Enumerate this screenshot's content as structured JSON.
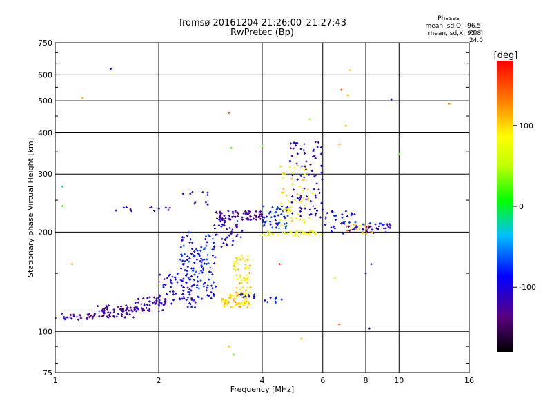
{
  "header": {
    "title": "Tromsø 20161204 21:26:00–21:27:43",
    "subtitle": "RwPretec (Bp)"
  },
  "phase_info": {
    "heading": "Phases",
    "line_o": "mean, sd,O: -96.5, 20.3",
    "line_x": "mean, sd,X: 92.8, 24.0"
  },
  "colorbar": {
    "label": "[deg]",
    "min": -180,
    "max": 180,
    "tick_labels": [
      "100",
      "0",
      "-100"
    ],
    "tick_values": [
      100,
      0,
      -100
    ]
  },
  "chart_data": {
    "type": "scatter",
    "xlabel": "Frequency [MHz]",
    "ylabel": "Stationary phase Virtual Height [km]",
    "x_scale": "log2",
    "y_scale": "log",
    "xlim": [
      1,
      16
    ],
    "ylim": [
      75,
      750
    ],
    "x_ticks": [
      1,
      2,
      4,
      6,
      8,
      10,
      16
    ],
    "y_ticks": [
      75,
      100,
      200,
      300,
      400,
      500,
      600,
      750
    ],
    "grid": true,
    "clusters": [
      {
        "x_range": [
          1.0,
          1.3
        ],
        "y_range": [
          108,
          114
        ],
        "phase": -120,
        "count": 30
      },
      {
        "x_range": [
          1.3,
          1.7
        ],
        "y_range": [
          110,
          120
        ],
        "phase": -130,
        "count": 60
      },
      {
        "x_range": [
          1.7,
          2.1
        ],
        "y_range": [
          115,
          128
        ],
        "phase": -120,
        "count": 55
      },
      {
        "x_range": [
          2.0,
          2.6
        ],
        "y_range": [
          118,
          150
        ],
        "phase": -100,
        "count": 60
      },
      {
        "x_range": [
          2.3,
          2.95
        ],
        "y_range": [
          125,
          200
        ],
        "phase": -85,
        "count": 130
      },
      {
        "x_range": [
          3.05,
          3.7
        ],
        "y_range": [
          118,
          130
        ],
        "phase": 100,
        "count": 70
      },
      {
        "x_range": [
          3.3,
          3.7
        ],
        "y_range": [
          130,
          170
        ],
        "phase": 95,
        "count": 60
      },
      {
        "x_range": [
          2.9,
          3.5
        ],
        "y_range": [
          180,
          220
        ],
        "phase": -105,
        "count": 40
      },
      {
        "x_range": [
          2.9,
          4.0
        ],
        "y_range": [
          218,
          232
        ],
        "phase": -125,
        "count": 70
      },
      {
        "x_range": [
          4.0,
          4.8
        ],
        "y_range": [
          205,
          240
        ],
        "phase": -80,
        "count": 50
      },
      {
        "x_range": [
          4.0,
          6.0
        ],
        "y_range": [
          195,
          202
        ],
        "phase": 80,
        "count": 40
      },
      {
        "x_range": [
          4.5,
          5.6
        ],
        "y_range": [
          210,
          320
        ],
        "phase": 90,
        "count": 60
      },
      {
        "x_range": [
          4.8,
          6.0
        ],
        "y_range": [
          220,
          380
        ],
        "phase": -110,
        "count": 80
      },
      {
        "x_range": [
          6.0,
          7.5
        ],
        "y_range": [
          198,
          232
        ],
        "phase": -90,
        "count": 35
      },
      {
        "x_range": [
          7.3,
          9.5
        ],
        "y_range": [
          198,
          213
        ],
        "phase": -100,
        "count": 35
      },
      {
        "x_range": [
          7.0,
          8.5
        ],
        "y_range": [
          198,
          212
        ],
        "phase": 110,
        "count": 20
      },
      {
        "x_range": [
          1.5,
          2.2
        ],
        "y_range": [
          231,
          238
        ],
        "phase": -115,
        "count": 12
      },
      {
        "x_range": [
          2.3,
          2.8
        ],
        "y_range": [
          240,
          265
        ],
        "phase": -110,
        "count": 10
      },
      {
        "x_range": [
          3.4,
          3.8
        ],
        "y_range": [
          125,
          130
        ],
        "phase": -100,
        "count": 10
      },
      {
        "x_range": [
          4.0,
          4.6
        ],
        "y_range": [
          122,
          127
        ],
        "phase": -80,
        "count": 10
      }
    ],
    "points": [
      {
        "x": 1.45,
        "y": 625,
        "phase": -110
      },
      {
        "x": 1.05,
        "y": 275,
        "phase": -10
      },
      {
        "x": 1.05,
        "y": 240,
        "phase": 20
      },
      {
        "x": 1.12,
        "y": 160,
        "phase": 120
      },
      {
        "x": 1.2,
        "y": 510,
        "phase": 110
      },
      {
        "x": 3.2,
        "y": 460,
        "phase": 150
      },
      {
        "x": 3.25,
        "y": 360,
        "phase": 20
      },
      {
        "x": 3.2,
        "y": 90,
        "phase": 110
      },
      {
        "x": 3.3,
        "y": 85,
        "phase": 30
      },
      {
        "x": 4.5,
        "y": 160,
        "phase": 150
      },
      {
        "x": 6.8,
        "y": 540,
        "phase": 160
      },
      {
        "x": 7.1,
        "y": 520,
        "phase": 120
      },
      {
        "x": 7.2,
        "y": 620,
        "phase": 110
      },
      {
        "x": 7.0,
        "y": 420,
        "phase": 130
      },
      {
        "x": 9.5,
        "y": 505,
        "phase": -110
      },
      {
        "x": 10.0,
        "y": 345,
        "phase": 30
      },
      {
        "x": 14.0,
        "y": 490,
        "phase": 130
      },
      {
        "x": 8.3,
        "y": 160,
        "phase": -110
      },
      {
        "x": 8.0,
        "y": 150,
        "phase": -100
      },
      {
        "x": 8.2,
        "y": 102,
        "phase": -120
      },
      {
        "x": 6.7,
        "y": 105,
        "phase": 150
      },
      {
        "x": 6.5,
        "y": 145,
        "phase": 60
      },
      {
        "x": 5.2,
        "y": 95,
        "phase": 110
      },
      {
        "x": 4.0,
        "y": 365,
        "phase": 20
      },
      {
        "x": 5.5,
        "y": 440,
        "phase": 40
      },
      {
        "x": 6.7,
        "y": 370,
        "phase": 140
      }
    ]
  }
}
